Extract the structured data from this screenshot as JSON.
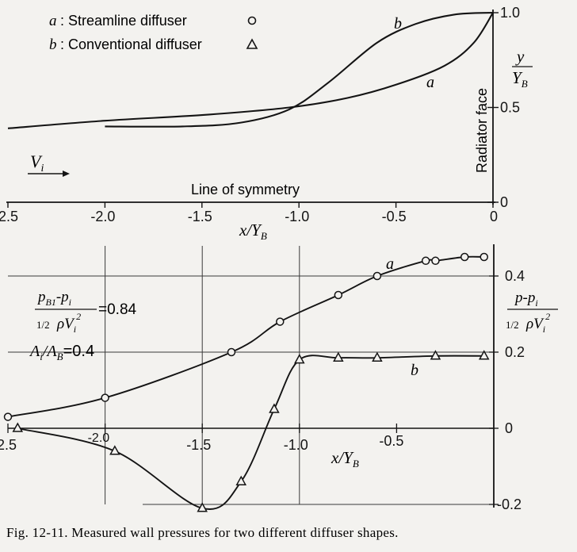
{
  "figure": {
    "caption": "Fig. 12-11. Measured wall pressures for two different diffuser shapes."
  },
  "legend": {
    "items": [
      {
        "key": "a",
        "label": "Streamline diffuser",
        "marker": "circle"
      },
      {
        "key": "b",
        "label": "Conventional diffuser",
        "marker": "triangle"
      }
    ]
  },
  "top_labels": {
    "vi": "V",
    "vi_sub": "i",
    "symmetry": "Line of symmetry",
    "radiator": "Radiator face",
    "y_num": "y",
    "y_den": "Y",
    "y_den_sub": "B",
    "x_axis": "x/Y",
    "x_axis_sub": "B",
    "curve_a": "a",
    "curve_b": "b"
  },
  "bottom_labels": {
    "ratio_num": "p",
    "ratio_num_sub": "B1",
    "ratio_num_rest": "-p",
    "ratio_num_rest_sub": "i",
    "ratio_den": "ρV",
    "ratio_den_sub": "i",
    "ratio_den_sup": "2",
    "ratio_half": "1/2",
    "ratio_value": "=0.84",
    "area_ratio": "A",
    "area_sub_i": "i",
    "area_sep": "/A",
    "area_sub_b": "B",
    "area_value": "=0.4",
    "ylabel_num": "p-p",
    "ylabel_num_sub": "i",
    "ylabel_half": "1/2",
    "ylabel_den": "ρV",
    "ylabel_den_sub": "i",
    "ylabel_den_sup": "2",
    "x_axis": "x/Y",
    "x_axis_sub": "B",
    "curve_a": "a",
    "curve_b": "b"
  },
  "colors": {
    "ink": "#141414",
    "paper": "#f3f2ef",
    "grid": "#3a3a3a"
  },
  "chart_data": [
    {
      "type": "line",
      "title": "",
      "xlabel": "x/Y_B",
      "ylabel": "y/Y_B",
      "xlim": [
        -2.5,
        0
      ],
      "ylim": [
        0,
        1.0
      ],
      "x_ticks": [
        -2.5,
        -2.0,
        -1.5,
        -1.0,
        -0.5,
        0
      ],
      "x_tick_labels": [
        "-2.5",
        "-2.0",
        "-1.5",
        "-1.0",
        "-0.5",
        "0"
      ],
      "y_ticks": [
        0,
        0.5,
        1.0
      ],
      "y_tick_labels": [
        "0",
        "0.5",
        "1.0"
      ],
      "y_axis_side": "right",
      "series": [
        {
          "name": "a",
          "x": [
            -2.5,
            -2.0,
            -1.5,
            -1.05,
            -0.75,
            -0.5,
            -0.25,
            -0.1,
            0.0
          ],
          "y": [
            0.39,
            0.43,
            0.46,
            0.5,
            0.55,
            0.62,
            0.72,
            0.84,
            1.0
          ]
        },
        {
          "name": "b",
          "x": [
            -2.0,
            -1.6,
            -1.3,
            -1.05,
            -0.85,
            -0.6,
            -0.4,
            -0.2,
            0.0
          ],
          "y": [
            0.4,
            0.4,
            0.42,
            0.49,
            0.63,
            0.84,
            0.94,
            0.99,
            1.0
          ]
        }
      ]
    },
    {
      "type": "line",
      "title": "",
      "xlabel": "x/Y_B",
      "ylabel": "(p - p_i) / (1/2 ρ V_i^2)",
      "xlim": [
        -2.5,
        0
      ],
      "ylim": [
        -0.2,
        0.45
      ],
      "x_tick_labels": [
        "-2.5",
        "-2.0",
        "-1.5",
        "-1.0",
        "-0.5"
      ],
      "y_ticks": [
        -0.2,
        0,
        0.2,
        0.4
      ],
      "y_tick_labels": [
        "-0.2",
        "0",
        "0.2",
        "0.4"
      ],
      "y_axis_side": "right",
      "grid": true,
      "annotations": [
        "(p_B1 - p_i)/(1/2 ρ V_i^2) = 0.84",
        "A_i/A_B = 0.4"
      ],
      "series": [
        {
          "name": "a",
          "marker": "circle",
          "x": [
            -2.5,
            -2.0,
            -1.35,
            -1.1,
            -0.8,
            -0.6,
            -0.35,
            -0.3,
            -0.15,
            -0.05
          ],
          "y": [
            0.03,
            0.08,
            0.2,
            0.28,
            0.35,
            0.4,
            0.44,
            0.44,
            0.45,
            0.45
          ]
        },
        {
          "name": "b",
          "marker": "triangle",
          "x": [
            -2.45,
            -1.95,
            -1.5,
            -1.3,
            -1.13,
            -1.0,
            -0.8,
            -0.6,
            -0.3,
            -0.05
          ],
          "y": [
            0.0,
            -0.06,
            -0.21,
            -0.14,
            0.05,
            0.18,
            0.185,
            0.185,
            0.19,
            0.19
          ]
        }
      ]
    }
  ]
}
